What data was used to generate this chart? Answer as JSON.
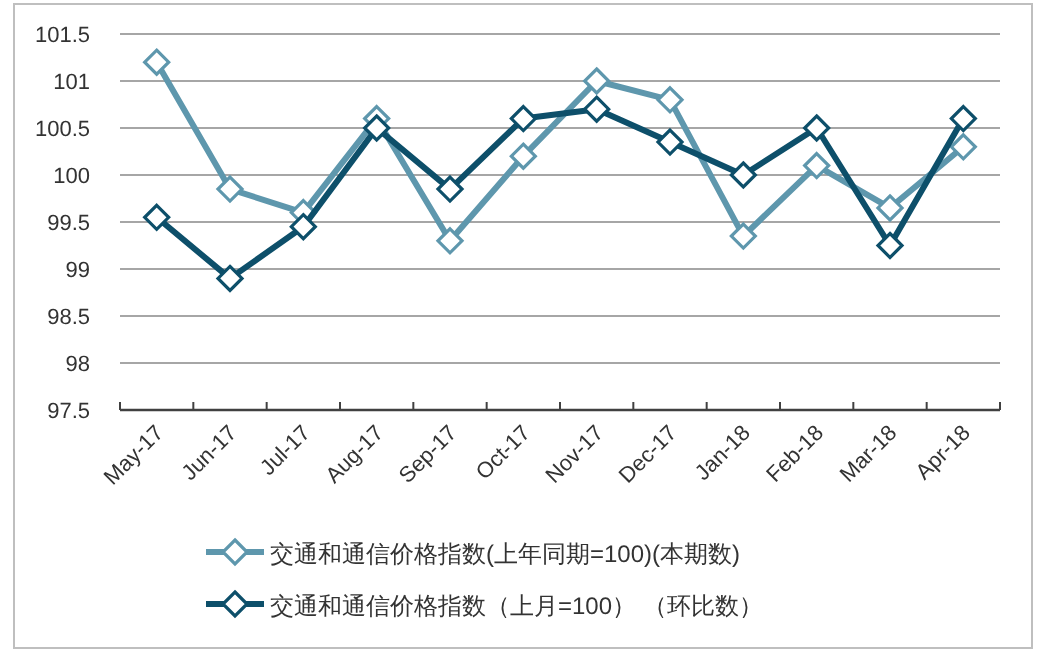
{
  "chart_data": {
    "type": "line",
    "categories": [
      "May-17",
      "Jun-17",
      "Jul-17",
      "Aug-17",
      "Sep-17",
      "Oct-17",
      "Nov-17",
      "Dec-17",
      "Jan-18",
      "Feb-18",
      "Mar-18",
      "Apr-18"
    ],
    "series": [
      {
        "name": "交通和通信价格指数(上年同期=100)(本期数)",
        "color": "#5e97ad",
        "values": [
          101.2,
          99.85,
          99.6,
          100.6,
          99.3,
          100.2,
          101.0,
          100.8,
          99.35,
          100.1,
          99.65,
          100.3
        ]
      },
      {
        "name": "交通和通信价格指数（上月=100） （环比数）",
        "color": "#0d4f6a",
        "values": [
          99.55,
          98.9,
          99.45,
          100.5,
          99.85,
          100.6,
          100.7,
          100.35,
          100.0,
          100.5,
          99.25,
          100.6
        ]
      }
    ],
    "ylim": [
      97.5,
      101.5
    ],
    "yticks": [
      97.5,
      98,
      98.5,
      99,
      99.5,
      100,
      100.5,
      101,
      101.5
    ],
    "grid": "y",
    "legend": "bottom",
    "marker": "diamond",
    "line_style": "solid"
  }
}
